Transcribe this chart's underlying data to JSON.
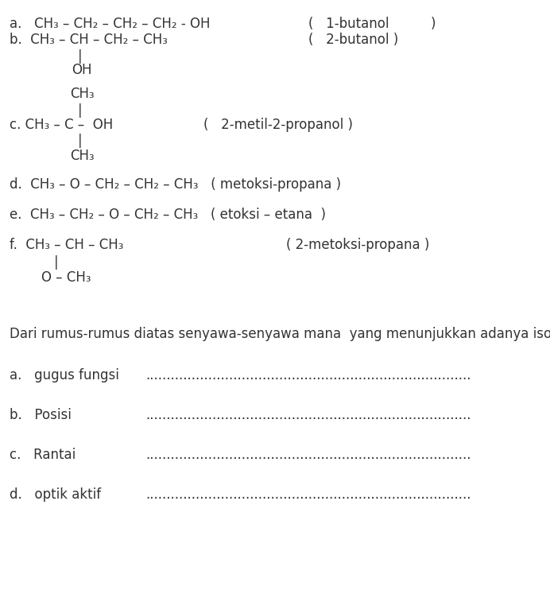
{
  "bg_color": "#ffffff",
  "text_color": "#333333",
  "font_size": 12.0,
  "fig_width": 6.92,
  "fig_height": 7.52,
  "dpi": 100,
  "items": [
    {
      "type": "text",
      "xf": 0.018,
      "yp": 30,
      "text": "a.   CH₃ – CH₂ – CH₂ – CH₂ - OH"
    },
    {
      "type": "text",
      "xf": 0.56,
      "yp": 30,
      "text": "(   1-butanol          )"
    },
    {
      "type": "text",
      "xf": 0.018,
      "yp": 50,
      "text": "b.  CH₃ – CH – CH₂ – CH₃"
    },
    {
      "type": "text",
      "xf": 0.56,
      "yp": 50,
      "text": "(   2-butanol )"
    },
    {
      "type": "text",
      "xf": 0.142,
      "yp": 71,
      "text": "|"
    },
    {
      "type": "text",
      "xf": 0.13,
      "yp": 88,
      "text": "OH"
    },
    {
      "type": "text",
      "xf": 0.127,
      "yp": 118,
      "text": "CH₃"
    },
    {
      "type": "text",
      "xf": 0.142,
      "yp": 139,
      "text": "|"
    },
    {
      "type": "text",
      "xf": 0.018,
      "yp": 157,
      "text": "c. CH₃ – C –  OH"
    },
    {
      "type": "text",
      "xf": 0.37,
      "yp": 157,
      "text": "(   2-metil-2-propanol )"
    },
    {
      "type": "text",
      "xf": 0.142,
      "yp": 177,
      "text": "|"
    },
    {
      "type": "text",
      "xf": 0.127,
      "yp": 196,
      "text": "CH₃"
    },
    {
      "type": "text",
      "xf": 0.018,
      "yp": 232,
      "text": "d.  CH₃ – O – CH₂ – CH₂ – CH₃   ( metoksi-propana )"
    },
    {
      "type": "text",
      "xf": 0.018,
      "yp": 270,
      "text": "e.  CH₃ – CH₂ – O – CH₂ – CH₃   ( etoksi – etana  )"
    },
    {
      "type": "text",
      "xf": 0.018,
      "yp": 308,
      "text": "f.  CH₃ – CH – CH₃"
    },
    {
      "type": "text",
      "xf": 0.52,
      "yp": 308,
      "text": "( 2-metoksi-propana )"
    },
    {
      "type": "text",
      "xf": 0.098,
      "yp": 330,
      "text": "|"
    },
    {
      "type": "text",
      "xf": 0.075,
      "yp": 349,
      "text": "O – CH₃"
    },
    {
      "type": "text",
      "xf": 0.018,
      "yp": 420,
      "text": "Dari rumus-rumus diatas senyawa-senyawa mana  yang menunjukkan adanya isomer"
    },
    {
      "type": "text",
      "xf": 0.018,
      "yp": 472,
      "text": "a.   gugus fungsi"
    },
    {
      "type": "dots",
      "xf": 0.265,
      "yp": 472
    },
    {
      "type": "text",
      "xf": 0.018,
      "yp": 522,
      "text": "b.   Posisi"
    },
    {
      "type": "dots",
      "xf": 0.265,
      "yp": 522
    },
    {
      "type": "text",
      "xf": 0.018,
      "yp": 572,
      "text": "c.   Rantai"
    },
    {
      "type": "dots",
      "xf": 0.265,
      "yp": 572
    },
    {
      "type": "text",
      "xf": 0.018,
      "yp": 622,
      "text": "d.   optik aktif"
    },
    {
      "type": "dots",
      "xf": 0.265,
      "yp": 622
    }
  ]
}
